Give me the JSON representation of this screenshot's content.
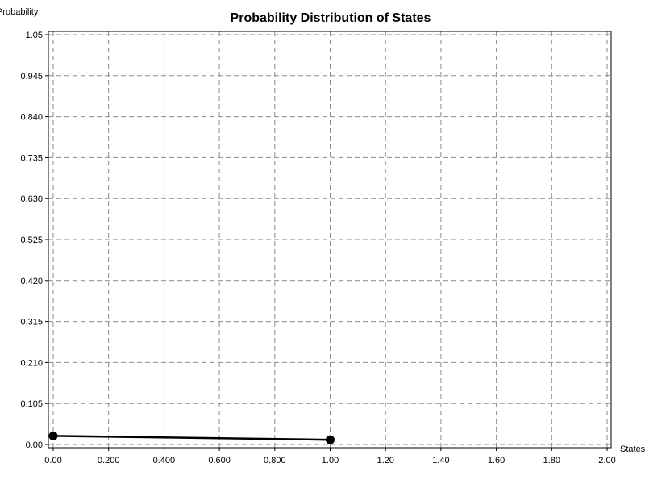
{
  "chart_data": {
    "type": "line",
    "title": "Probability Distribution of States",
    "xlabel": "States",
    "ylabel": "Probability",
    "xlim": [
      0,
      2.0
    ],
    "ylim": [
      0,
      1.05
    ],
    "x_ticks": [
      "0.00",
      "0.200",
      "0.400",
      "0.600",
      "0.800",
      "1.00",
      "1.20",
      "1.40",
      "1.60",
      "1.80",
      "2.00"
    ],
    "y_ticks": [
      "0.00",
      "0.105",
      "0.210",
      "0.315",
      "0.420",
      "0.525",
      "0.630",
      "0.735",
      "0.840",
      "0.945",
      "1.05"
    ],
    "grid": true,
    "series": [
      {
        "color": "#000000",
        "points": [
          {
            "x": 0.0,
            "y": 0.022
          },
          {
            "x": 1.0,
            "y": 0.012
          }
        ]
      }
    ]
  }
}
